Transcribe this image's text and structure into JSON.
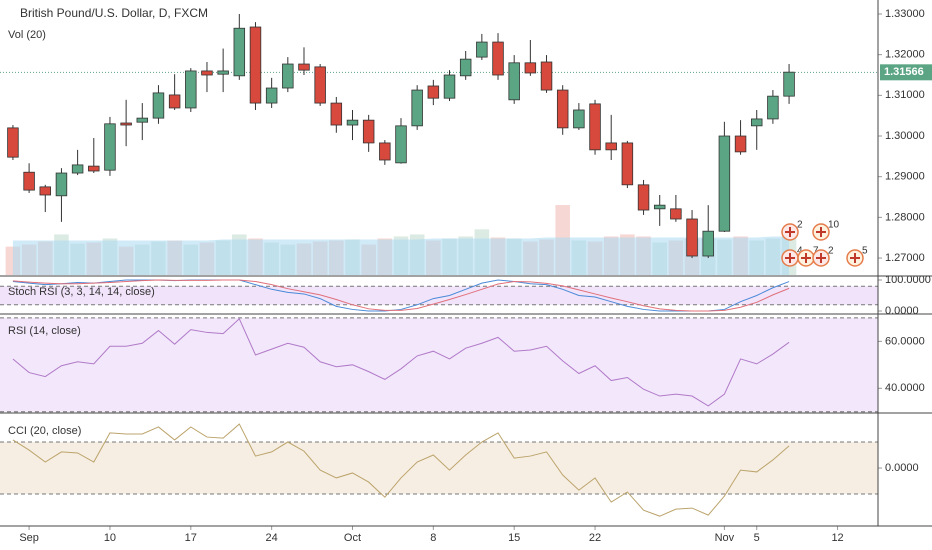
{
  "chart_data": [
    {
      "type": "candlestick",
      "title": "British Pound/U.S. Dollar, D, FXCM",
      "subtitle": "Vol (20)",
      "open": [
        1.302,
        1.2911,
        1.2875,
        1.2853,
        1.2909,
        1.2926,
        1.2916,
        1.3032,
        1.3034,
        1.3044,
        1.3101,
        1.3069,
        1.316,
        1.3152,
        1.3148,
        1.3268,
        1.3081,
        1.3118,
        1.3177,
        1.317,
        1.3081,
        1.3027,
        1.3039,
        1.2983,
        1.2934,
        1.3025,
        1.3123,
        1.3093,
        1.3148,
        1.3194,
        1.3231,
        1.3089,
        1.318,
        1.3182,
        1.3113,
        1.302,
        1.3079,
        1.2983,
        1.2983,
        1.288,
        1.2821,
        1.2821,
        1.2796,
        1.2705,
        1.2766,
        1.3,
        1.3025,
        1.3042,
        1.3098
      ],
      "high": [
        1.3027,
        1.2933,
        1.288,
        1.2921,
        1.2966,
        1.2995,
        1.3047,
        1.3089,
        1.3081,
        1.3125,
        1.3152,
        1.3167,
        1.3182,
        1.3215,
        1.33,
        1.328,
        1.3143,
        1.3194,
        1.3218,
        1.3177,
        1.3096,
        1.3064,
        1.3052,
        1.299,
        1.3044,
        1.3125,
        1.3138,
        1.3162,
        1.3209,
        1.3251,
        1.3253,
        1.3199,
        1.3236,
        1.3199,
        1.3125,
        1.3081,
        1.3089,
        1.3052,
        1.2988,
        1.2892,
        1.2855,
        1.2855,
        1.2818,
        1.283,
        1.3035,
        1.3039,
        1.3064,
        1.3113,
        1.3177
      ],
      "low": [
        1.2941,
        1.286,
        1.2813,
        1.2789,
        1.2904,
        1.2909,
        1.2902,
        1.2975,
        1.299,
        1.303,
        1.3064,
        1.3059,
        1.3108,
        1.3108,
        1.3138,
        1.3064,
        1.3069,
        1.3108,
        1.315,
        1.3074,
        1.3008,
        1.299,
        1.2961,
        1.2929,
        1.2932,
        1.3015,
        1.3076,
        1.3086,
        1.3138,
        1.3187,
        1.3138,
        1.3079,
        1.3148,
        1.3106,
        1.3003,
        1.3015,
        1.2954,
        1.2941,
        1.2872,
        1.2806,
        1.2779,
        1.2789,
        1.27,
        1.27,
        1.2764,
        1.2954,
        1.2966,
        1.303,
        1.3079
      ],
      "close": [
        1.2948,
        1.2867,
        1.2855,
        1.2909,
        1.2929,
        1.2914,
        1.303,
        1.3027,
        1.3044,
        1.3106,
        1.3069,
        1.316,
        1.315,
        1.316,
        1.3265,
        1.3081,
        1.3118,
        1.3177,
        1.3162,
        1.3081,
        1.3027,
        1.3039,
        1.2983,
        1.2941,
        1.3025,
        1.3113,
        1.3093,
        1.315,
        1.3189,
        1.3231,
        1.315,
        1.318,
        1.3155,
        1.3113,
        1.302,
        1.3064,
        1.2966,
        1.2966,
        1.288,
        1.2818,
        1.283,
        1.2796,
        1.2705,
        1.2766,
        1.3,
        1.2961,
        1.3042,
        1.3098,
        1.3157
      ],
      "up_color": "#5ba584",
      "down_color": "#d6493c",
      "volume": [
        28,
        30,
        33,
        40,
        31,
        32,
        36,
        28,
        30,
        33,
        34,
        30,
        32,
        34,
        40,
        36,
        32,
        30,
        31,
        33,
        34,
        35,
        30,
        36,
        38,
        40,
        34,
        36,
        38,
        45,
        37,
        36,
        33,
        35,
        69,
        34,
        33,
        38,
        40,
        38,
        32,
        34,
        36,
        36,
        35,
        38,
        34,
        36,
        38
      ],
      "volume_ma": [
        34,
        34,
        34,
        34,
        34,
        34,
        34,
        34,
        34,
        34,
        34,
        34,
        34,
        35,
        35,
        35,
        35,
        35,
        35,
        35,
        35,
        35,
        35,
        35,
        35,
        35,
        36,
        36,
        36,
        36,
        36,
        36,
        36,
        37,
        37,
        37,
        37,
        37,
        37,
        37,
        37,
        37,
        37,
        37,
        37,
        37,
        37,
        38,
        38
      ],
      "volume_ma_color": "#a9d8f0",
      "ylim": [
        1.26583,
        1.33344
      ],
      "yticks": [
        {
          "value": 1.33,
          "label": "1.33000"
        },
        {
          "value": 1.32,
          "label": "1.32000"
        },
        {
          "value": 1.31,
          "label": "1.31000"
        },
        {
          "value": 1.3,
          "label": "1.30000"
        },
        {
          "value": 1.29,
          "label": "1.29000"
        },
        {
          "value": 1.28,
          "label": "1.28000"
        },
        {
          "value": 1.27,
          "label": "1.27000"
        }
      ],
      "xlim": [
        -0.8,
        53.5
      ],
      "xticks": [
        {
          "value": 1,
          "label": "Sep"
        },
        {
          "value": 6,
          "label": "10"
        },
        {
          "value": 11,
          "label": "17"
        },
        {
          "value": 16,
          "label": "24"
        },
        {
          "value": 21,
          "label": "Oct"
        },
        {
          "value": 26,
          "label": "8"
        },
        {
          "value": 31,
          "label": "15"
        },
        {
          "value": 36,
          "label": "22"
        },
        {
          "value": 44,
          "label": "Nov"
        },
        {
          "value": 46,
          "label": "5"
        },
        {
          "value": 51,
          "label": "12"
        }
      ],
      "last_price": {
        "value": 1.31566,
        "label": "1.31566"
      },
      "events": [
        "2",
        "10",
        "4",
        "7",
        "2",
        "5"
      ]
    },
    {
      "type": "line",
      "title": "Stoch RSI (3, 3, 14, 14, close)",
      "series": [
        {
          "color": "#4a8ad8",
          "values": [
            95,
            90,
            85,
            88,
            92,
            90,
            95,
            100,
            100,
            100,
            98,
            100,
            100,
            100,
            100,
            85,
            70,
            60,
            55,
            40,
            15,
            5,
            0,
            0,
            5,
            20,
            40,
            50,
            70,
            90,
            100,
            95,
            88,
            85,
            70,
            50,
            45,
            30,
            15,
            5,
            0,
            0,
            0,
            0,
            5,
            30,
            50,
            75,
            95
          ]
        },
        {
          "color": "#e0707a",
          "values": [
            97,
            93,
            90,
            88,
            88,
            90,
            92,
            95,
            98,
            100,
            99,
            99,
            99,
            100,
            100,
            95,
            85,
            72,
            62,
            52,
            37,
            20,
            7,
            2,
            2,
            8,
            22,
            37,
            53,
            70,
            87,
            95,
            94,
            89,
            81,
            68,
            55,
            42,
            30,
            17,
            7,
            2,
            0,
            0,
            2,
            12,
            28,
            52,
            73
          ]
        }
      ],
      "ylim": [
        -6.5,
        109.7
      ],
      "yticks": [
        {
          "value": 100,
          "label": "100.0000"
        },
        {
          "value": 0,
          "label": "0.0000"
        }
      ],
      "levels": [
        80,
        20
      ],
      "band_color": "#f1e3fa"
    },
    {
      "type": "line",
      "title": "RSI (14, close)",
      "series": [
        {
          "color": "#b07ac8",
          "values": [
            52.5,
            46.7,
            45,
            49.6,
            51.3,
            50.4,
            57.9,
            57.9,
            59.2,
            64.6,
            58.8,
            65,
            63.8,
            63.3,
            69.6,
            54.2,
            56.7,
            59.2,
            57.5,
            51.3,
            49.2,
            50,
            47.1,
            43.8,
            48.3,
            53.8,
            55.8,
            52.5,
            57.1,
            59.2,
            61.7,
            55.8,
            56.3,
            57.9,
            51.7,
            46.3,
            49.6,
            43.3,
            44.6,
            39.6,
            36.7,
            37.5,
            36.7,
            32.5,
            37.5,
            52.5,
            50.4,
            54.6,
            59.6
          ]
        }
      ],
      "ylim": [
        29.9,
        70.8
      ],
      "yticks": [
        {
          "value": 60,
          "label": "60.0000"
        },
        {
          "value": 40,
          "label": "40.0000"
        }
      ],
      "levels": [
        70,
        30
      ],
      "band_color": "#f3e7fb"
    },
    {
      "type": "line",
      "title": "CCI (20, close)",
      "series": [
        {
          "color": "#bca46c",
          "values": [
            108,
            69,
            23,
            62,
            58,
            23,
            135,
            131,
            131,
            158,
            108,
            158,
            119,
            115,
            169,
            46,
            62,
            100,
            65,
            -8,
            -38,
            -19,
            -54,
            -112,
            -38,
            23,
            50,
            -8,
            50,
            100,
            135,
            38,
            46,
            62,
            -27,
            -85,
            -38,
            -131,
            -92,
            -162,
            -185,
            -158,
            -154,
            -181,
            -108,
            -8,
            -15,
            31,
            85
          ]
        }
      ],
      "ylim": [
        -219,
        200
      ],
      "yticks": [
        {
          "value": 0,
          "label": "0.0000"
        }
      ],
      "levels": [
        100,
        -100
      ],
      "band_color": "#f6eee3"
    }
  ]
}
